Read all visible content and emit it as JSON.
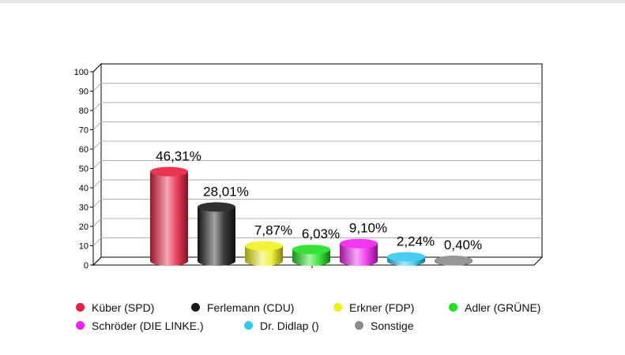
{
  "chart_data": {
    "type": "bar",
    "categories": [
      "Küber (SPD)",
      "Ferlemann (CDU)",
      "Erkner (FDP)",
      "Adler (GRÜNE)",
      "Schröder (DIE LINKE.)",
      "Dr. Didlap ()",
      "Sonstige"
    ],
    "values": [
      46.31,
      28.01,
      7.87,
      6.03,
      9.1,
      2.24,
      0.4
    ],
    "data_labels": [
      "46,31%",
      "28,01%",
      "7,87%",
      "6,03%",
      "9,10%",
      "2,24%",
      "0,40%"
    ],
    "colors": [
      "#e8203f",
      "#1a1a1a",
      "#f0f020",
      "#20e020",
      "#f020f0",
      "#30c8f0",
      "#8a8a8a"
    ],
    "ylim": [
      0,
      100
    ],
    "yticks": [
      "0",
      "10",
      "20",
      "30",
      "40",
      "50",
      "60",
      "70",
      "80",
      "90",
      "100"
    ],
    "grid": true,
    "legend_position": "bottom",
    "title": "",
    "xlabel": "",
    "ylabel": ""
  },
  "legend": {
    "rows": [
      [
        {
          "label": "Küber (SPD)",
          "color": "#e8203f"
        },
        {
          "label": "Ferlemann (CDU)",
          "color": "#1a1a1a"
        },
        {
          "label": "Erkner (FDP)",
          "color": "#f0f020"
        },
        {
          "label": "Adler (GRÜNE)",
          "color": "#20e020"
        }
      ],
      [
        {
          "label": "Schröder (DIE LINKE.)",
          "color": "#f020f0"
        },
        {
          "label": "Dr. Didlap ()",
          "color": "#30c8f0"
        },
        {
          "label": "Sonstige",
          "color": "#8a8a8a"
        }
      ]
    ]
  }
}
